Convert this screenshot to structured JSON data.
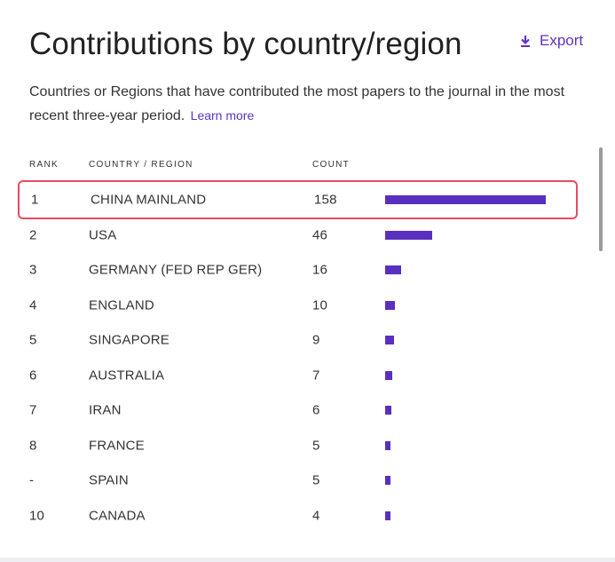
{
  "header": {
    "title": "Contributions by country/region",
    "export_label": "Export",
    "export_icon": "download-icon"
  },
  "description": {
    "text": "Countries or Regions that have contributed the most papers to the journal in the most recent three-year period.",
    "learn_more": "Learn more"
  },
  "table": {
    "columns": [
      "RANK",
      "COUNTRY / REGION",
      "COUNT"
    ],
    "highlighted_row": 0,
    "rows": [
      {
        "rank": "1",
        "country": "CHINA MAINLAND",
        "count": "158"
      },
      {
        "rank": "2",
        "country": "USA",
        "count": "46"
      },
      {
        "rank": "3",
        "country": "GERMANY (FED REP GER)",
        "count": "16"
      },
      {
        "rank": "4",
        "country": "ENGLAND",
        "count": "10"
      },
      {
        "rank": "5",
        "country": "SINGAPORE",
        "count": "9"
      },
      {
        "rank": "6",
        "country": "AUSTRALIA",
        "count": "7"
      },
      {
        "rank": "7",
        "country": "IRAN",
        "count": "6"
      },
      {
        "rank": "8",
        "country": "FRANCE",
        "count": "5"
      },
      {
        "rank": "-",
        "country": "SPAIN",
        "count": "5"
      },
      {
        "rank": "10",
        "country": "CANADA",
        "count": "4"
      }
    ]
  },
  "colors": {
    "accent": "#5e33bf",
    "bar": "#5a2fc0",
    "highlight_border": "#e94b5f"
  }
}
